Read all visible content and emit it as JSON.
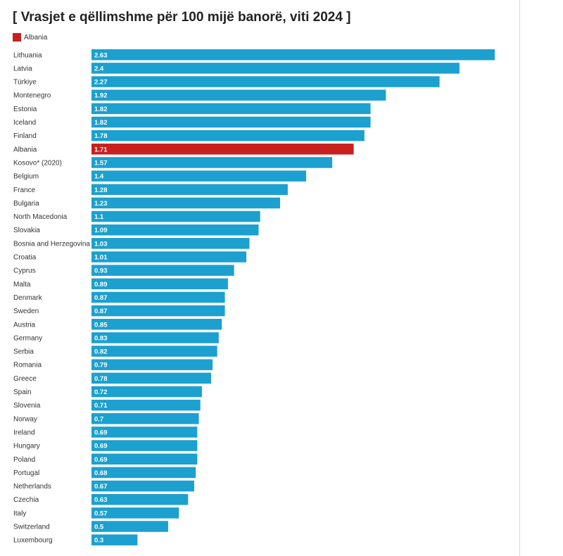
{
  "chart_data": {
    "type": "bar",
    "orientation": "horizontal",
    "title": "[ Vrasjet e qëllimshme për 100 mijë banorë, viti 2024 ]",
    "legend": [
      {
        "name": "Albania",
        "color": "#c8201f"
      }
    ],
    "legend_placement": "top-left",
    "grid": false,
    "xlim": [
      0,
      2.63
    ],
    "default_color": "#1ca0cf",
    "highlight_color": "#c8201f",
    "highlight_category": "Albania",
    "categories": [
      "Lithuania",
      "Latvia",
      "Türkiye",
      "Montenegro",
      "Estonia",
      "Iceland",
      "Finland",
      "Albania",
      "Kosovo* (2020)",
      "Belgium",
      "France",
      "Bulgaria",
      "North Macedonia",
      "Slovakia",
      "Bosnia and Herzegovina",
      "Croatia",
      "Cyprus",
      "Malta",
      "Denmark",
      "Sweden",
      "Austria",
      "Germany",
      "Serbia",
      "Romania",
      "Greece",
      "Spain",
      "Slovenia",
      "Norway",
      "Ireland",
      "Hungary",
      "Poland",
      "Portugal",
      "Netherlands",
      "Czechia",
      "Italy",
      "Switzerland",
      "Luxembourg"
    ],
    "values": [
      2.63,
      2.4,
      2.27,
      1.92,
      1.82,
      1.82,
      1.78,
      1.71,
      1.57,
      1.4,
      1.28,
      1.23,
      1.1,
      1.09,
      1.03,
      1.01,
      0.93,
      0.89,
      0.87,
      0.87,
      0.85,
      0.83,
      0.82,
      0.79,
      0.78,
      0.72,
      0.71,
      0.7,
      0.69,
      0.69,
      0.69,
      0.68,
      0.67,
      0.63,
      0.57,
      0.5,
      0.3
    ]
  }
}
